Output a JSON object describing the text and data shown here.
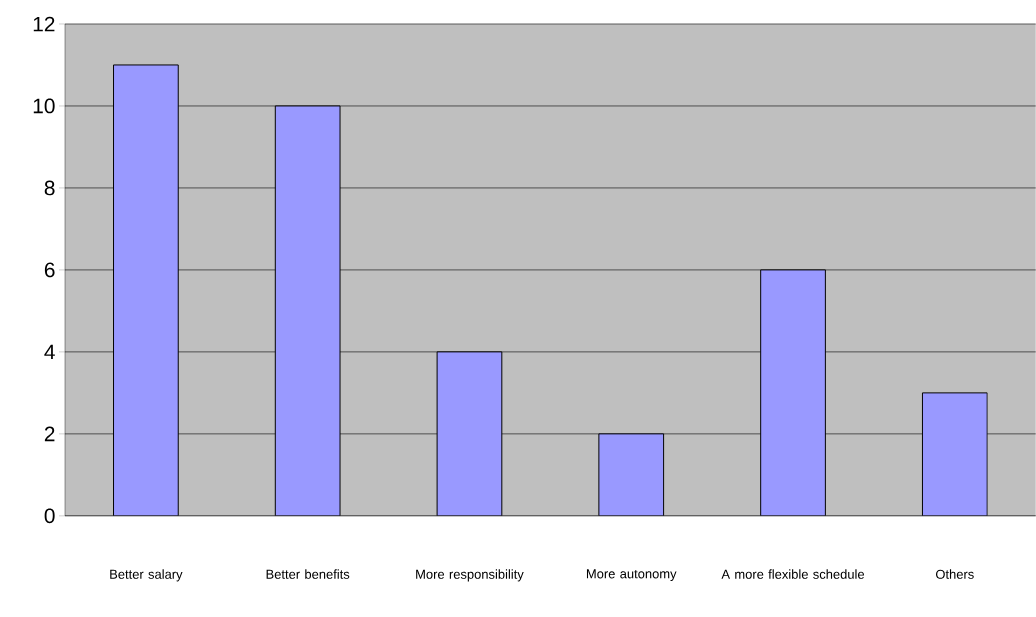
{
  "chart_data": {
    "type": "bar",
    "categories": [
      "Better salary",
      "Better benefits",
      "More responsibility",
      "More autonomy",
      "A more flexible schedule",
      "Others"
    ],
    "values": [
      11,
      10,
      4,
      2,
      6,
      3
    ],
    "color": "#9999ff",
    "ylim": [
      0,
      12
    ],
    "yticks": [
      0,
      2,
      4,
      6,
      8,
      10,
      12
    ],
    "grid": "y"
  }
}
